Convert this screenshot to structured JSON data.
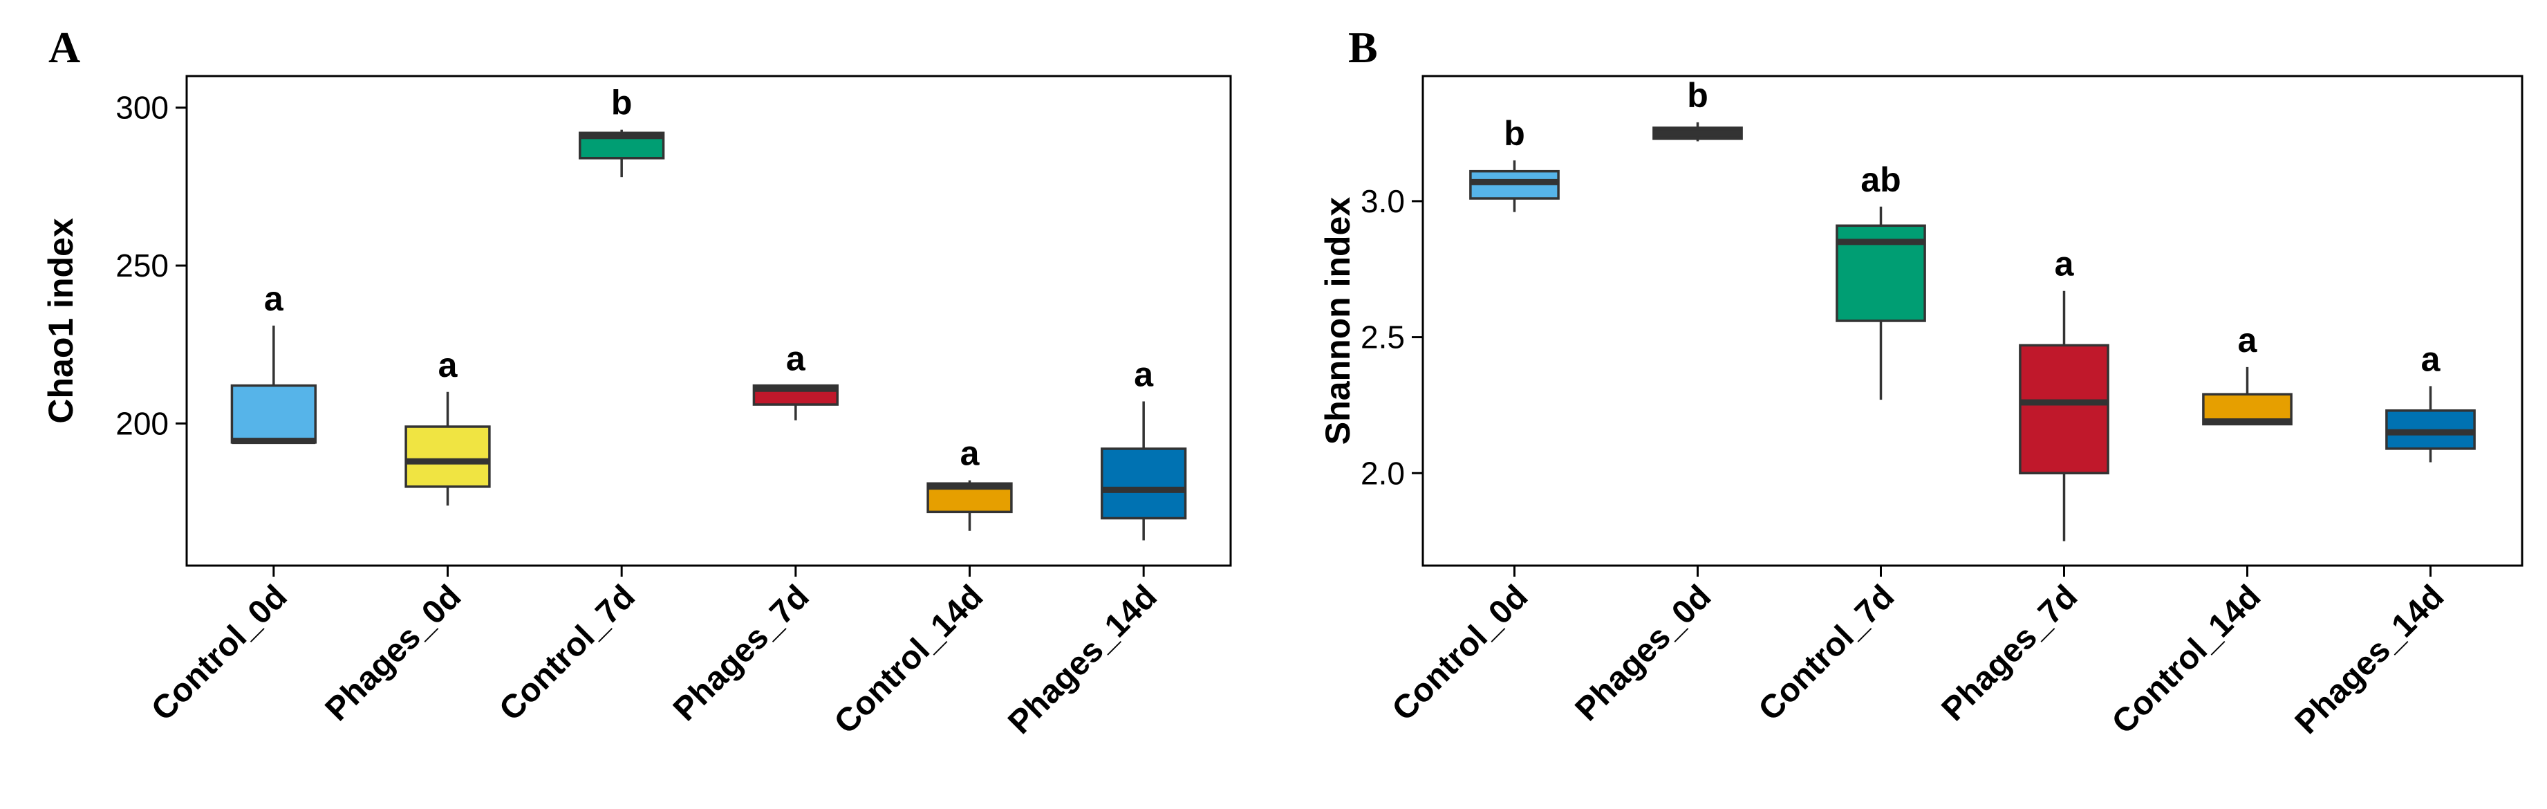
{
  "chart_data": [
    {
      "type": "box",
      "panel_label": "A",
      "title": "",
      "xlabel": "",
      "ylabel": "Chao1 index",
      "ylim": [
        155,
        310
      ],
      "yticks": [
        200,
        250,
        300
      ],
      "categories": [
        "Control_0d",
        "Phages_0d",
        "Control_7d",
        "Phages_7d",
        "Control_14d",
        "Phages_14d"
      ],
      "boxes": [
        {
          "category": "Control_0d",
          "min": 194,
          "q1": 194,
          "median": 194.5,
          "q3": 212,
          "max": 231,
          "color": "#56B4E9",
          "sig": "a"
        },
        {
          "category": "Phages_0d",
          "min": 174,
          "q1": 180,
          "median": 188,
          "q3": 199,
          "max": 210,
          "color": "#F0E442",
          "sig": "a"
        },
        {
          "category": "Control_7d",
          "min": 278,
          "q1": 284,
          "median": 291,
          "q3": 292,
          "max": 293,
          "color": "#009E73",
          "sig": "b"
        },
        {
          "category": "Phages_7d",
          "min": 201,
          "q1": 206,
          "median": 211,
          "q3": 212,
          "max": 212,
          "color": "#C0182B",
          "sig": "a"
        },
        {
          "category": "Control_14d",
          "min": 166,
          "q1": 172,
          "median": 180,
          "q3": 181,
          "max": 182,
          "color": "#E69F00",
          "sig": "a"
        },
        {
          "category": "Phages_14d",
          "min": 163,
          "q1": 170,
          "median": 179,
          "q3": 192,
          "max": 207,
          "color": "#0072B2",
          "sig": "a"
        }
      ]
    },
    {
      "type": "box",
      "panel_label": "B",
      "title": "",
      "xlabel": "",
      "ylabel": "Shannon index",
      "ylim": [
        1.66,
        3.46
      ],
      "yticks": [
        2.0,
        2.5,
        3.0
      ],
      "ytick_labels": [
        "2.0",
        "2.5",
        "3.0"
      ],
      "categories": [
        "Control_0d",
        "Phages_0d",
        "Control_7d",
        "Phages_7d",
        "Control_14d",
        "Phages_14d"
      ],
      "boxes": [
        {
          "category": "Control_0d",
          "min": 2.96,
          "q1": 3.01,
          "median": 3.07,
          "q3": 3.11,
          "max": 3.15,
          "color": "#56B4E9",
          "sig": "b"
        },
        {
          "category": "Phages_0d",
          "min": 3.22,
          "q1": 3.23,
          "median": 3.25,
          "q3": 3.27,
          "max": 3.29,
          "color": "#333333",
          "sig": "b"
        },
        {
          "category": "Control_7d",
          "min": 2.27,
          "q1": 2.56,
          "median": 2.85,
          "q3": 2.91,
          "max": 2.98,
          "color": "#009E73",
          "sig": "ab"
        },
        {
          "category": "Phages_7d",
          "min": 1.75,
          "q1": 2.0,
          "median": 2.26,
          "q3": 2.47,
          "max": 2.67,
          "color": "#C0182B",
          "sig": "a"
        },
        {
          "category": "Control_14d",
          "min": 2.18,
          "q1": 2.18,
          "median": 2.19,
          "q3": 2.29,
          "max": 2.39,
          "color": "#E69F00",
          "sig": "a"
        },
        {
          "category": "Phages_14d",
          "min": 2.04,
          "q1": 2.09,
          "median": 2.15,
          "q3": 2.23,
          "max": 2.32,
          "color": "#0072B2",
          "sig": "a"
        }
      ]
    }
  ]
}
